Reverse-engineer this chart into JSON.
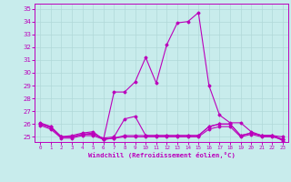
{
  "xlabel": "Windchill (Refroidissement éolien,°C)",
  "bg_color": "#c8ecec",
  "grid_color": "#b0d8d8",
  "line_color": "#bb00bb",
  "ylim": [
    24.6,
    35.4
  ],
  "xlim": [
    -0.5,
    23.5
  ],
  "yticks": [
    25,
    26,
    27,
    28,
    29,
    30,
    31,
    32,
    33,
    34,
    35
  ],
  "xticks": [
    0,
    1,
    2,
    3,
    4,
    5,
    6,
    7,
    8,
    9,
    10,
    11,
    12,
    13,
    14,
    15,
    16,
    17,
    18,
    19,
    20,
    21,
    22,
    23
  ],
  "series": [
    {
      "x": [
        0,
        1,
        2,
        3,
        4,
        5,
        6,
        7,
        8,
        9,
        10,
        11,
        12,
        13,
        14,
        15,
        16,
        17,
        18,
        19,
        20,
        21,
        22,
        23
      ],
      "y": [
        26.1,
        25.8,
        25.0,
        25.1,
        25.3,
        25.4,
        24.8,
        28.5,
        28.5,
        29.3,
        31.2,
        29.2,
        32.2,
        33.9,
        34.0,
        34.7,
        29.0,
        26.7,
        26.1,
        26.1,
        25.4,
        25.1,
        25.1,
        24.8
      ]
    },
    {
      "x": [
        0,
        1,
        2,
        3,
        4,
        5,
        6,
        7,
        8,
        9,
        10,
        11,
        12,
        13,
        14,
        15,
        16,
        17,
        18,
        19,
        20,
        21,
        22,
        23
      ],
      "y": [
        26.0,
        25.8,
        25.0,
        25.0,
        25.2,
        25.3,
        24.8,
        24.9,
        25.1,
        25.1,
        25.1,
        25.1,
        25.1,
        25.1,
        25.1,
        25.1,
        25.8,
        26.0,
        26.0,
        25.1,
        25.3,
        25.1,
        25.1,
        24.7
      ]
    },
    {
      "x": [
        0,
        1,
        2,
        3,
        4,
        5,
        6,
        7,
        8,
        9,
        10,
        11,
        12,
        13,
        14,
        15,
        16,
        17,
        18,
        19,
        20,
        21,
        22,
        23
      ],
      "y": [
        25.9,
        25.6,
        24.9,
        24.9,
        25.1,
        25.1,
        24.8,
        24.9,
        25.0,
        25.0,
        25.0,
        25.0,
        25.0,
        25.0,
        25.0,
        25.0,
        25.6,
        25.8,
        25.8,
        25.0,
        25.2,
        25.0,
        25.0,
        24.8
      ]
    },
    {
      "x": [
        0,
        1,
        2,
        3,
        4,
        5,
        6,
        7,
        8,
        9,
        10,
        11,
        12,
        13,
        14,
        15,
        16,
        17,
        18,
        19,
        20,
        21,
        22,
        23
      ],
      "y": [
        26.0,
        25.7,
        25.0,
        25.0,
        25.2,
        25.2,
        24.9,
        25.0,
        26.4,
        26.6,
        25.1,
        25.1,
        25.1,
        25.1,
        25.1,
        25.1,
        25.8,
        26.0,
        26.0,
        25.1,
        25.3,
        25.1,
        25.1,
        25.0
      ]
    }
  ]
}
